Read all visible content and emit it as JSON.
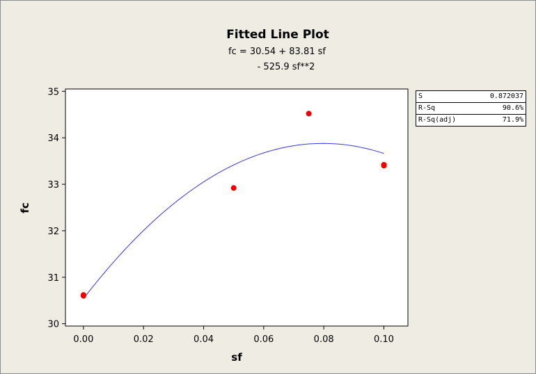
{
  "chart_data": {
    "type": "scatter",
    "title": "Fitted Line Plot",
    "equation_line1": "fc =  30.54 + 83.81 sf",
    "equation_line2": "- 525.9 sf**2",
    "xlabel": "sf",
    "ylabel": "fc",
    "xlim": [
      -0.006,
      0.108
    ],
    "ylim": [
      29.95,
      35.05
    ],
    "xticks": [
      "0.00",
      "0.02",
      "0.04",
      "0.06",
      "0.08",
      "0.10"
    ],
    "xtick_values": [
      0.0,
      0.02,
      0.04,
      0.06,
      0.08,
      0.1
    ],
    "yticks": [
      "30",
      "31",
      "32",
      "33",
      "34",
      "35"
    ],
    "ytick_values": [
      30,
      31,
      32,
      33,
      34,
      35
    ],
    "points": {
      "x": [
        0.0,
        0.0,
        0.05,
        0.075,
        0.1,
        0.1
      ],
      "y": [
        30.62,
        30.6,
        32.92,
        34.52,
        33.42,
        33.4
      ]
    },
    "fit": {
      "intercept": 30.54,
      "linear": 83.81,
      "quadratic": -525.9,
      "x_range": [
        0.0,
        0.1
      ]
    },
    "point_color": "#ee0000",
    "line_color": "#3333ee",
    "grid": false
  },
  "stats": [
    {
      "label": "S",
      "value": "0.872037"
    },
    {
      "label": "R-Sq",
      "value": "90.6%"
    },
    {
      "label": "R-Sq(adj)",
      "value": "71.9%"
    }
  ]
}
